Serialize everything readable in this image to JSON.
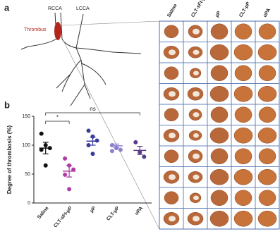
{
  "panel_a": {
    "label": "a",
    "vessel_labels": [
      "RCCA",
      "LCCA"
    ],
    "thrombus_label": "Thrombus",
    "columns": [
      "Saline",
      "CLT-sFt-µP",
      "µP",
      "CLT-µP",
      "uPA"
    ]
  },
  "chart_data": {
    "type": "dot",
    "panel_label": "b",
    "y_label": "Degree of thrombosis (%)",
    "categories": [
      "Saline",
      "CLT-sFt-µP",
      "µP",
      "CLT-µP",
      "uPA"
    ],
    "colors": [
      "#111111",
      "#b23aa8",
      "#3b3b9e",
      "#8e7fd0",
      "#5a3a88"
    ],
    "points": [
      [
        120,
        100,
        95,
        92,
        65
      ],
      [
        77,
        65,
        58,
        49,
        24
      ],
      [
        125,
        115,
        108,
        100,
        85
      ],
      [
        100,
        95,
        92,
        90
      ],
      [
        105,
        88,
        80
      ]
    ],
    "means": [
      95,
      55,
      107,
      99,
      91
    ],
    "sems": [
      10,
      10,
      7,
      3,
      7
    ],
    "ylim": [
      0,
      150
    ],
    "yticks": [
      0,
      50,
      100,
      150
    ],
    "significance": [
      {
        "label": "*",
        "from": 0,
        "to": 1
      },
      {
        "label": "ns",
        "from": 0,
        "to": 4
      }
    ]
  }
}
